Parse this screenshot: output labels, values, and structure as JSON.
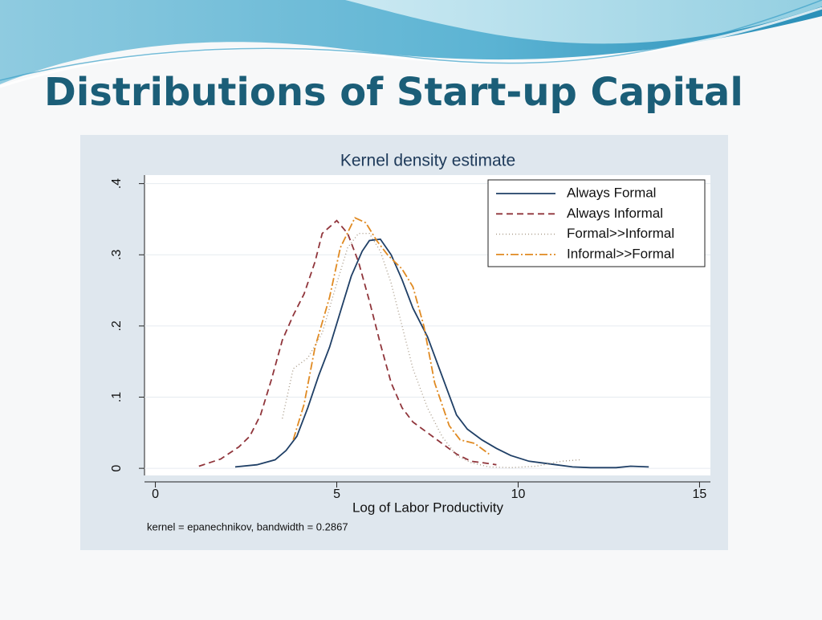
{
  "slide_title": "Distributions of Start-up Capital",
  "chart_data": {
    "type": "line",
    "title": "Kernel density estimate",
    "x_label": "Log of Labor Productivity",
    "note": "kernel = epanechnikov, bandwidth = 0.2867",
    "xlim": [
      -0.3,
      15.3
    ],
    "xticks": [
      0,
      5,
      10,
      15
    ],
    "ylim": [
      -0.01,
      0.412
    ],
    "yticks": [
      0,
      {
        "value": 0.1,
        "label": ".1"
      },
      {
        "value": 0.2,
        "label": ".2"
      },
      {
        "value": 0.3,
        "label": ".3"
      },
      {
        "value": 0.4,
        "label": ".4"
      }
    ],
    "grid": true,
    "legend": "top-right",
    "series": [
      {
        "name": "Always Formal",
        "color": "#1f3f66",
        "line_style": "solid",
        "x": [
          2.2,
          2.8,
          3.3,
          3.6,
          3.9,
          4.2,
          4.5,
          4.8,
          5.1,
          5.4,
          5.7,
          5.9,
          6.2,
          6.5,
          6.8,
          7.1,
          7.5,
          7.9,
          8.3,
          8.6,
          9.0,
          9.4,
          9.8,
          10.3,
          10.9,
          11.5,
          12.0,
          12.7,
          13.1,
          13.6
        ],
        "values": [
          0.002,
          0.005,
          0.012,
          0.025,
          0.045,
          0.085,
          0.13,
          0.17,
          0.22,
          0.27,
          0.305,
          0.32,
          0.322,
          0.3,
          0.265,
          0.225,
          0.185,
          0.13,
          0.075,
          0.055,
          0.04,
          0.028,
          0.018,
          0.01,
          0.006,
          0.002,
          0.001,
          0.001,
          0.003,
          0.002
        ]
      },
      {
        "name": "Always Informal",
        "color": "#90353b",
        "line_style": "dashed",
        "x": [
          1.2,
          1.8,
          2.3,
          2.6,
          2.9,
          3.2,
          3.5,
          3.8,
          4.1,
          4.4,
          4.6,
          5.0,
          5.3,
          5.6,
          5.9,
          6.2,
          6.5,
          6.8,
          7.1,
          7.5,
          7.9,
          8.3,
          8.7,
          9.0,
          9.4
        ],
        "values": [
          0.003,
          0.013,
          0.03,
          0.045,
          0.075,
          0.125,
          0.18,
          0.215,
          0.245,
          0.29,
          0.33,
          0.348,
          0.33,
          0.29,
          0.235,
          0.175,
          0.12,
          0.085,
          0.065,
          0.05,
          0.035,
          0.02,
          0.01,
          0.008,
          0.005
        ]
      },
      {
        "name": "Formal>>Informal",
        "color": "#a89a88",
        "line_style": "dotted",
        "x": [
          3.5,
          3.8,
          4.2,
          4.6,
          5.0,
          5.3,
          5.6,
          5.9,
          6.2,
          6.5,
          6.8,
          7.1,
          7.5,
          7.9,
          8.3,
          8.7,
          9.2,
          9.8,
          10.5,
          11.2,
          11.7
        ],
        "values": [
          0.07,
          0.14,
          0.155,
          0.19,
          0.26,
          0.31,
          0.33,
          0.33,
          0.305,
          0.26,
          0.2,
          0.14,
          0.085,
          0.045,
          0.018,
          0.008,
          0.002,
          0.001,
          0.003,
          0.01,
          0.012
        ]
      },
      {
        "name": "Informal>>Formal",
        "color": "#e08a22",
        "line_style": "dash-dot",
        "x": [
          3.8,
          4.1,
          4.4,
          4.8,
          5.1,
          5.5,
          5.8,
          6.1,
          6.4,
          6.8,
          7.1,
          7.4,
          7.7,
          8.1,
          8.4,
          8.8,
          9.2
        ],
        "values": [
          0.04,
          0.09,
          0.17,
          0.24,
          0.31,
          0.352,
          0.345,
          0.32,
          0.3,
          0.28,
          0.255,
          0.2,
          0.12,
          0.06,
          0.04,
          0.035,
          0.02
        ]
      }
    ]
  }
}
